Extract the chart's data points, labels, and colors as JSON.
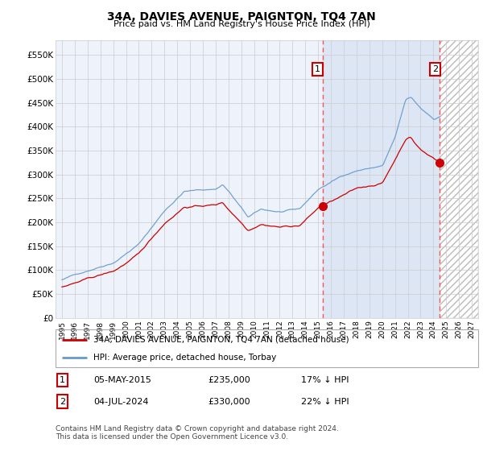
{
  "title": "34A, DAVIES AVENUE, PAIGNTON, TQ4 7AN",
  "subtitle": "Price paid vs. HM Land Registry's House Price Index (HPI)",
  "legend_line1": "34A, DAVIES AVENUE, PAIGNTON, TQ4 7AN (detached house)",
  "legend_line2": "HPI: Average price, detached house, Torbay",
  "annotation1": {
    "label": "1",
    "date": "05-MAY-2015",
    "price": 235000,
    "note": "17% ↓ HPI",
    "year": 2015.34
  },
  "annotation2": {
    "label": "2",
    "date": "04-JUL-2024",
    "price": 330000,
    "note": "22% ↓ HPI",
    "year": 2024.5
  },
  "footer": "Contains HM Land Registry data © Crown copyright and database right 2024.\nThis data is licensed under the Open Government Licence v3.0.",
  "hpi_color": "#6699cc",
  "price_color": "#cc0000",
  "dot_color": "#cc0000",
  "background_color": "#ffffff",
  "plot_bg_color": "#eef2fa",
  "shade_color": "#dde6f5",
  "grid_color": "#cccccc",
  "ylim": [
    0,
    580000
  ],
  "xlim_start": 1994.5,
  "xlim_end": 2027.5,
  "yticks": [
    0,
    50000,
    100000,
    150000,
    200000,
    250000,
    300000,
    350000,
    400000,
    450000,
    500000,
    550000
  ],
  "ytick_labels": [
    "£0",
    "£50K",
    "£100K",
    "£150K",
    "£200K",
    "£250K",
    "£300K",
    "£350K",
    "£400K",
    "£450K",
    "£500K",
    "£550K"
  ],
  "xticks": [
    1995,
    1996,
    1997,
    1998,
    1999,
    2000,
    2001,
    2002,
    2003,
    2004,
    2005,
    2006,
    2007,
    2008,
    2009,
    2010,
    2011,
    2012,
    2013,
    2014,
    2015,
    2016,
    2017,
    2018,
    2019,
    2020,
    2021,
    2022,
    2023,
    2024,
    2025,
    2026,
    2027
  ]
}
